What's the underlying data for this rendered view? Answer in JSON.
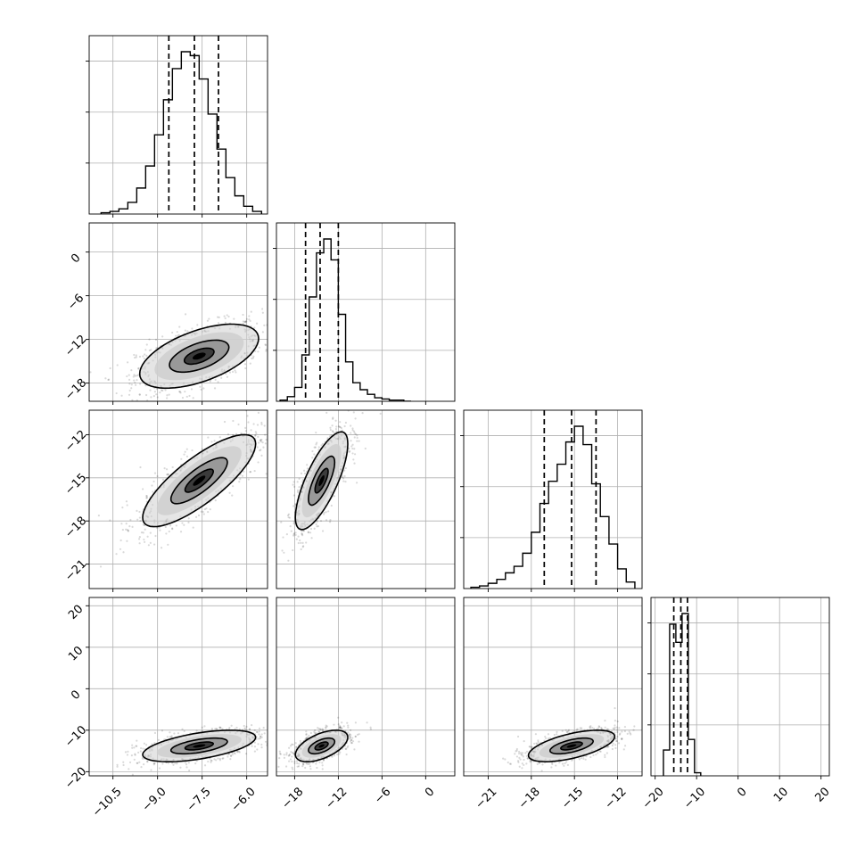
{
  "chart_data": {
    "type": "corner",
    "title": "",
    "grid": true,
    "parameters": [
      {
        "range": [
          -11.3,
          -5.3
        ],
        "ticks": [
          -10.5,
          -9.0,
          -7.5,
          -6.0
        ],
        "tick_labels": [
          "−10.5",
          "−9.0",
          "−7.5",
          "−6.0"
        ]
      },
      {
        "range": [
          -20.5,
          4.0
        ],
        "ticks": [
          -18,
          -12,
          -6,
          0
        ],
        "tick_labels": [
          "−18",
          "−12",
          "−6",
          "0"
        ]
      },
      {
        "range": [
          -22.7,
          -10.3
        ],
        "ticks": [
          -21,
          -18,
          -15,
          -12
        ],
        "tick_labels": [
          "−21",
          "−18",
          "−15",
          "−12"
        ]
      },
      {
        "range": [
          -21.0,
          22.0
        ],
        "ticks": [
          -20,
          -10,
          0,
          10,
          20
        ],
        "tick_labels": [
          "−20",
          "−10",
          "0",
          "10",
          "20"
        ]
      }
    ],
    "marginals": [
      {
        "param": 0,
        "bin_edges": [
          -10.9,
          -10.6,
          -10.3,
          -10.0,
          -9.7,
          -9.4,
          -9.1,
          -8.8,
          -8.5,
          -8.2,
          -7.9,
          -7.6,
          -7.3,
          -7.0,
          -6.7,
          -6.4,
          -6.1,
          -5.8,
          -5.5
        ],
        "counts": [
          1,
          2,
          4,
          9,
          20,
          37,
          61,
          88,
          112,
          125,
          122,
          104,
          77,
          50,
          28,
          14,
          6,
          2
        ],
        "quantiles": [
          -8.62,
          -7.76,
          -6.95
        ]
      },
      {
        "param": 1,
        "bin_edges": [
          -20.0,
          -19.0,
          -18.0,
          -17.0,
          -16.0,
          -15.0,
          -14.0,
          -13.0,
          -12.0,
          -11.0,
          -10.0,
          -9.0,
          -8.0,
          -7.0,
          -6.0,
          -5.0,
          -4.0,
          -3.0,
          -2.0
        ],
        "counts": [
          1,
          4,
          12,
          40,
          90,
          128,
          140,
          122,
          75,
          34,
          16,
          10,
          6,
          3,
          2,
          1,
          1,
          0
        ],
        "quantiles": [
          -16.5,
          -14.5,
          -12.0
        ]
      },
      {
        "param": 2,
        "bin_edges": [
          -22.2,
          -21.6,
          -21.0,
          -20.4,
          -19.8,
          -19.2,
          -18.6,
          -18.0,
          -17.4,
          -16.8,
          -16.2,
          -15.6,
          -15.0,
          -14.4,
          -13.8,
          -13.2,
          -12.6,
          -12.0,
          -11.4,
          -10.8
        ],
        "counts": [
          1,
          2,
          4,
          7,
          12,
          17,
          27,
          43,
          65,
          82,
          95,
          112,
          124,
          110,
          80,
          55,
          34,
          15,
          5
        ],
        "quantiles": [
          -17.1,
          -15.2,
          -13.5
        ]
      },
      {
        "param": 3,
        "bin_edges": [
          -18.0,
          -16.5,
          -15.0,
          -13.5,
          -12.0,
          -10.5,
          -9.0
        ],
        "counts": [
          17,
          100,
          88,
          107,
          24,
          2
        ],
        "quantiles": [
          -15.5,
          -13.8,
          -12.2
        ]
      }
    ],
    "pairs": [
      {
        "x_param": 0,
        "y_param": 1,
        "center": [
          -7.6,
          -14.3
        ],
        "sd": [
          1.0,
          2.2
        ],
        "corr": 0.55
      },
      {
        "x_param": 0,
        "y_param": 2,
        "center": [
          -7.6,
          -15.2
        ],
        "sd": [
          0.95,
          1.6
        ],
        "corr": 0.8
      },
      {
        "x_param": 1,
        "y_param": 2,
        "center": [
          -14.3,
          -15.2
        ],
        "sd": [
          1.8,
          1.7
        ],
        "corr": 0.75
      },
      {
        "x_param": 0,
        "y_param": 3,
        "center": [
          -7.6,
          -13.8
        ],
        "sd": [
          0.95,
          1.9
        ],
        "corr": 0.55
      },
      {
        "x_param": 1,
        "y_param": 3,
        "center": [
          -14.3,
          -13.8
        ],
        "sd": [
          1.8,
          1.9
        ],
        "corr": 0.55
      },
      {
        "x_param": 2,
        "y_param": 3,
        "center": [
          -15.2,
          -13.8
        ],
        "sd": [
          1.5,
          1.9
        ],
        "corr": 0.6
      }
    ],
    "contour_levels_sigma": [
      0.5,
      1.0,
      1.5,
      2.0
    ],
    "colors": {
      "marks": "#000000",
      "grid": "#b0b0b0",
      "background": "#ffffff",
      "density_light": "#cfcfcf",
      "density_mid": "#8f8f8f",
      "density_dark": "#2a2a2a"
    }
  }
}
